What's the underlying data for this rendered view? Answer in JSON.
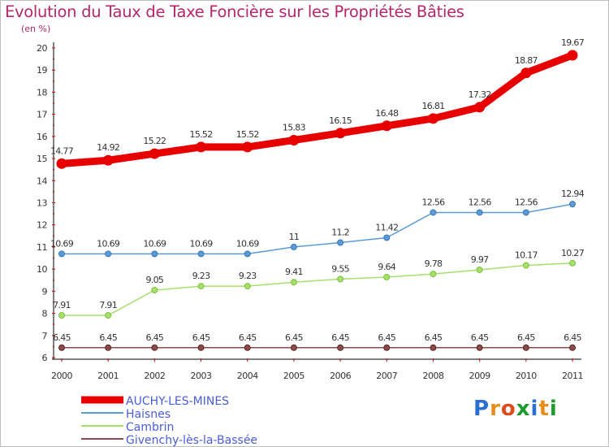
{
  "header": {
    "title": "Evolution du Taux de Taxe Foncière sur les Propriétés Bâties",
    "unit": "(en %)"
  },
  "logo": {
    "text": "Proxiti",
    "letters": [
      "P",
      "r",
      "o",
      "x",
      "i",
      "t",
      "i"
    ],
    "colors": [
      "#2a6fd1",
      "#e88d1c",
      "#e04b1b",
      "#1f9a2e",
      "#2a6fd1",
      "#e88d1c",
      "#1f9a2e"
    ]
  },
  "chart_data": {
    "type": "line",
    "title": "Evolution du Taux de Taxe Foncière sur les Propriétés Bâties",
    "ylabel": "(en %)",
    "xlabel": "",
    "x": [
      "2000",
      "2001",
      "2002",
      "2003",
      "2004",
      "2005",
      "2006",
      "2007",
      "2008",
      "2009",
      "2010",
      "2011"
    ],
    "ylim": [
      6,
      20
    ],
    "yticks": [
      "6",
      "7",
      "8",
      "9",
      "10",
      "11",
      "12",
      "13",
      "14",
      "15",
      "16",
      "17",
      "18",
      "19",
      "20"
    ],
    "grid": false,
    "legend_position": "bottom-left",
    "series": [
      {
        "name": "AUCHY-LES-MINES",
        "color": "#e80000",
        "legend_color": "#4a5cd6",
        "values": [
          14.77,
          14.92,
          15.22,
          15.52,
          15.52,
          15.83,
          16.15,
          16.48,
          16.81,
          17.32,
          18.87,
          19.67
        ],
        "labels": [
          "14.77",
          "14.92",
          "15.22",
          "15.52",
          "15.52",
          "15.83",
          "16.15",
          "16.48",
          "16.81",
          "17.32",
          "18.87",
          "19.67"
        ]
      },
      {
        "name": "Haisnes",
        "color": "#5b9bd5",
        "legend_color": "#4a5cd6",
        "values": [
          10.69,
          10.69,
          10.69,
          10.69,
          10.69,
          11,
          11.2,
          11.42,
          12.56,
          12.56,
          12.56,
          12.94
        ],
        "labels": [
          "10.69",
          "10.69",
          "10.69",
          "10.69",
          "10.69",
          "11",
          "11.2",
          "11.42",
          "12.56",
          "12.56",
          "12.56",
          "12.94"
        ]
      },
      {
        "name": "Cambrin",
        "color": "#a6e06a",
        "legend_color": "#4a5cd6",
        "values": [
          7.91,
          7.91,
          9.05,
          9.23,
          9.23,
          9.41,
          9.55,
          9.64,
          9.78,
          9.97,
          10.17,
          10.27
        ],
        "labels": [
          "7.91",
          "7.91",
          "9.05",
          "9.23",
          "9.23",
          "9.41",
          "9.55",
          "9.64",
          "9.78",
          "9.97",
          "10.17",
          "10.27"
        ]
      },
      {
        "name": "Givenchy-lès-la-Bassée",
        "color": "#8a4a4a",
        "legend_color": "#4a5cd6",
        "values": [
          6.45,
          6.45,
          6.45,
          6.45,
          6.45,
          6.45,
          6.45,
          6.45,
          6.45,
          6.45,
          6.45,
          6.45
        ],
        "labels": [
          "6.45",
          "6.45",
          "6.45",
          "6.45",
          "6.45",
          "6.45",
          "6.45",
          "6.45",
          "6.45",
          "6.45",
          "6.45",
          "6.45"
        ]
      }
    ]
  }
}
